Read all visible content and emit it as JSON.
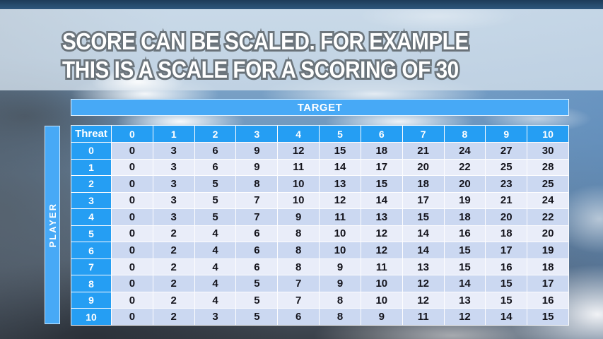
{
  "slide": {
    "title_line1": "SCORE CAN BE SCALED. FOR EXAMPLE",
    "title_line2": "THIS IS A SCALE FOR A SCORING OF 30"
  },
  "chart_data": {
    "type": "table",
    "title": "Score scaling matrix for a scoring of 30",
    "target_label": "TARGET",
    "player_label": "PLAYER",
    "corner_label": "Threat",
    "column_headers": [
      "0",
      "1",
      "2",
      "3",
      "4",
      "5",
      "6",
      "7",
      "8",
      "9",
      "10"
    ],
    "row_headers": [
      "0",
      "1",
      "2",
      "3",
      "4",
      "5",
      "6",
      "7",
      "8",
      "9",
      "10"
    ],
    "rows": [
      [
        0,
        3,
        6,
        9,
        12,
        15,
        18,
        21,
        24,
        27,
        30
      ],
      [
        0,
        3,
        6,
        9,
        11,
        14,
        17,
        20,
        22,
        25,
        28
      ],
      [
        0,
        3,
        5,
        8,
        10,
        13,
        15,
        18,
        20,
        23,
        25
      ],
      [
        0,
        3,
        5,
        7,
        10,
        12,
        14,
        17,
        19,
        21,
        24
      ],
      [
        0,
        3,
        5,
        7,
        9,
        11,
        13,
        15,
        18,
        20,
        22
      ],
      [
        0,
        2,
        4,
        6,
        8,
        10,
        12,
        14,
        16,
        18,
        20
      ],
      [
        0,
        2,
        4,
        6,
        8,
        10,
        12,
        14,
        15,
        17,
        19
      ],
      [
        0,
        2,
        4,
        6,
        8,
        9,
        11,
        13,
        15,
        16,
        18
      ],
      [
        0,
        2,
        4,
        5,
        7,
        9,
        10,
        12,
        14,
        15,
        17
      ],
      [
        0,
        2,
        4,
        5,
        7,
        8,
        10,
        12,
        13,
        15,
        16
      ],
      [
        0,
        2,
        3,
        5,
        6,
        8,
        9,
        11,
        12,
        14,
        15
      ]
    ]
  },
  "colors": {
    "header_blue": "#259ef3",
    "bar_blue": "#47a9f6",
    "row_even_bg": "#cbd8f1",
    "row_odd_bg": "#e9edf9",
    "cell_text": "#14141c"
  }
}
